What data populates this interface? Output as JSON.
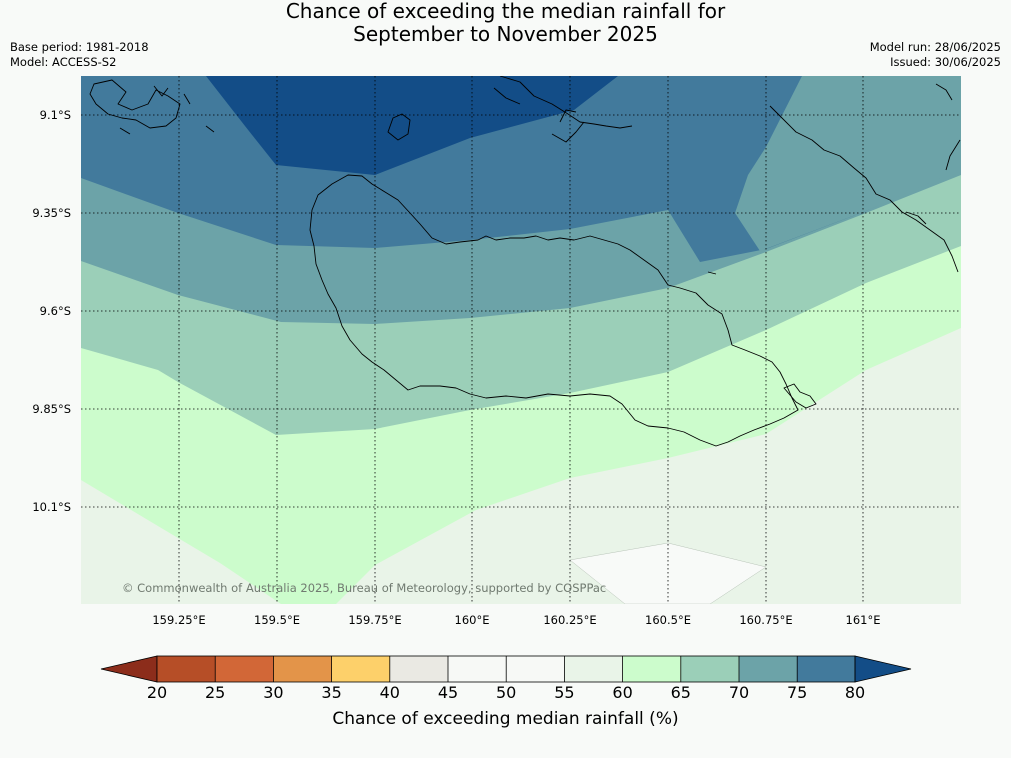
{
  "title_line1": "Chance of exceeding the median rainfall for",
  "title_line2": "September to November 2025",
  "meta_left": {
    "base_period": "Base period: 1981-2018",
    "model": "Model: ACCESS-S2"
  },
  "meta_right": {
    "model_run": "Model run: 28/06/2025",
    "issued": "Issued: 30/06/2025"
  },
  "copyright": "© Commonwealth of Australia 2025, Bureau of Meteorology, supported by COSPPac",
  "latitudes": [
    "9.1°S",
    "9.35°S",
    "9.6°S",
    "9.85°S",
    "10.1°S"
  ],
  "longitudes": [
    "159.25°E",
    "159.5°E",
    "159.75°E",
    "160°E",
    "160.25°E",
    "160.5°E",
    "160.75°E",
    "161°E"
  ],
  "colorbar": {
    "ticks": [
      "20",
      "25",
      "30",
      "35",
      "40",
      "45",
      "50",
      "55",
      "60",
      "65",
      "70",
      "75",
      "80"
    ],
    "colors": [
      "#8c2d1b",
      "#b64e27",
      "#d26737",
      "#e39449",
      "#fdd06a",
      "#eae9e3",
      "#f7f9f6",
      "#f7f9f6",
      "#e9f4e8",
      "#ccfccc",
      "#9bcfb8",
      "#6ca3a8",
      "#427a9c",
      "#134d87"
    ],
    "label": "Chance of exceeding median rainfall (%)"
  }
}
